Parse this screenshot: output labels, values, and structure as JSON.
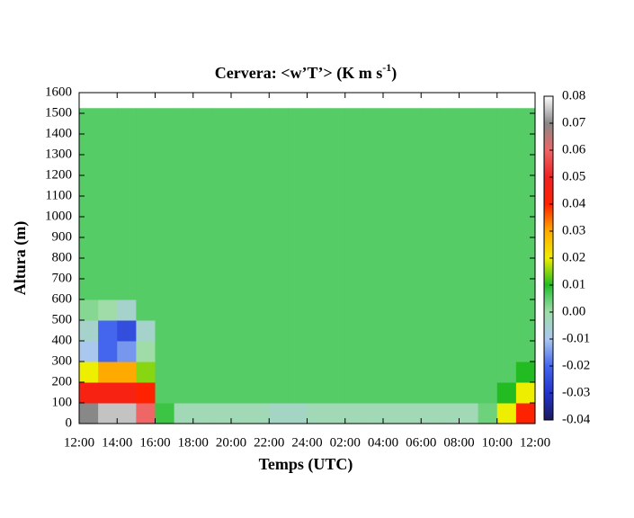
{
  "chart_data": {
    "type": "heatmap",
    "title": [
      "Cervera: <w’T’> (K m s",
      "-1",
      ")"
    ],
    "xlabel": "Temps (UTC)",
    "ylabel": "Altura (m)",
    "xlim": [
      0,
      24
    ],
    "xticks": [
      {
        "value": 0,
        "label": "12:00"
      },
      {
        "value": 2,
        "label": "14:00"
      },
      {
        "value": 4,
        "label": "16:00"
      },
      {
        "value": 6,
        "label": "18:00"
      },
      {
        "value": 8,
        "label": "20:00"
      },
      {
        "value": 10,
        "label": "22:00"
      },
      {
        "value": 12,
        "label": "24:00"
      },
      {
        "value": 14,
        "label": "02:00"
      },
      {
        "value": 16,
        "label": "04:00"
      },
      {
        "value": 18,
        "label": "06:00"
      },
      {
        "value": 20,
        "label": "08:00"
      },
      {
        "value": 22,
        "label": "10:00"
      },
      {
        "value": 24,
        "label": "12:00"
      }
    ],
    "ylim": [
      0,
      1600
    ],
    "yticks": [
      0,
      100,
      200,
      300,
      400,
      500,
      600,
      700,
      800,
      900,
      1000,
      1100,
      1200,
      1300,
      1400,
      1500,
      1600
    ],
    "xbins": [
      0,
      1,
      2,
      3,
      4,
      5,
      6,
      7,
      8,
      9,
      10,
      11,
      12,
      13,
      14,
      15,
      16,
      17,
      18,
      19,
      20,
      21,
      22,
      23,
      24
    ],
    "ybins": [
      0,
      100,
      200,
      300,
      400,
      500,
      600,
      700,
      800,
      900,
      1000,
      1100,
      1200,
      1300,
      1400,
      1500,
      1525
    ],
    "z": [
      [
        0.07,
        0.075,
        0.075,
        0.06,
        0.008,
        -0.002,
        -0.002,
        -0.002,
        -0.002,
        -0.002,
        -0.004,
        -0.004,
        -0.002,
        -0.002,
        -0.002,
        -0.002,
        -0.002,
        -0.002,
        -0.002,
        -0.002,
        -0.002,
        0.004,
        0.02,
        0.04
      ],
      [
        0.045,
        0.045,
        0.045,
        0.04,
        0.006,
        0.006,
        0.006,
        0.006,
        0.006,
        0.006,
        0.006,
        0.006,
        0.006,
        0.006,
        0.006,
        0.006,
        0.006,
        0.006,
        0.006,
        0.006,
        0.006,
        0.006,
        0.01,
        0.02
      ],
      [
        0.02,
        0.03,
        0.03,
        0.015,
        0.006,
        0.006,
        0.006,
        0.006,
        0.006,
        0.006,
        0.006,
        0.006,
        0.006,
        0.006,
        0.006,
        0.006,
        0.006,
        0.006,
        0.006,
        0.006,
        0.006,
        0.006,
        0.006,
        0.01
      ],
      [
        -0.01,
        -0.02,
        -0.015,
        0.0,
        0.006,
        0.006,
        0.006,
        0.006,
        0.006,
        0.006,
        0.006,
        0.006,
        0.006,
        0.006,
        0.006,
        0.006,
        0.006,
        0.006,
        0.006,
        0.006,
        0.006,
        0.006,
        0.006,
        0.006
      ],
      [
        -0.005,
        -0.02,
        -0.025,
        -0.005,
        0.006,
        0.006,
        0.006,
        0.006,
        0.006,
        0.006,
        0.006,
        0.006,
        0.006,
        0.006,
        0.006,
        0.006,
        0.006,
        0.006,
        0.006,
        0.006,
        0.006,
        0.006,
        0.006,
        0.006
      ],
      [
        0.002,
        0.0,
        -0.005,
        0.006,
        0.006,
        0.006,
        0.006,
        0.006,
        0.006,
        0.006,
        0.006,
        0.006,
        0.006,
        0.006,
        0.006,
        0.006,
        0.006,
        0.006,
        0.006,
        0.006,
        0.006,
        0.006,
        0.006,
        0.006
      ],
      [
        0.006,
        0.006,
        0.006,
        0.006,
        0.006,
        0.006,
        0.006,
        0.006,
        0.006,
        0.006,
        0.006,
        0.006,
        0.006,
        0.006,
        0.006,
        0.006,
        0.006,
        0.006,
        0.006,
        0.006,
        0.006,
        0.006,
        0.006,
        0.006
      ],
      [
        0.006,
        0.006,
        0.006,
        0.006,
        0.006,
        0.006,
        0.006,
        0.006,
        0.006,
        0.006,
        0.006,
        0.006,
        0.006,
        0.006,
        0.006,
        0.006,
        0.006,
        0.006,
        0.006,
        0.006,
        0.006,
        0.006,
        0.006,
        0.006
      ],
      [
        0.006,
        0.006,
        0.006,
        0.006,
        0.006,
        0.006,
        0.006,
        0.006,
        0.006,
        0.006,
        0.006,
        0.006,
        0.006,
        0.006,
        0.006,
        0.006,
        0.006,
        0.006,
        0.006,
        0.006,
        0.006,
        0.006,
        0.006,
        0.006
      ],
      [
        0.006,
        0.006,
        0.006,
        0.006,
        0.006,
        0.006,
        0.006,
        0.006,
        0.006,
        0.006,
        0.006,
        0.006,
        0.006,
        0.006,
        0.006,
        0.006,
        0.006,
        0.006,
        0.006,
        0.006,
        0.006,
        0.006,
        0.006,
        0.006
      ],
      [
        0.006,
        0.006,
        0.006,
        0.006,
        0.006,
        0.006,
        0.006,
        0.006,
        0.006,
        0.006,
        0.006,
        0.006,
        0.006,
        0.006,
        0.006,
        0.006,
        0.006,
        0.006,
        0.006,
        0.006,
        0.006,
        0.006,
        0.006,
        0.006
      ],
      [
        0.006,
        0.006,
        0.006,
        0.006,
        0.006,
        0.006,
        0.006,
        0.006,
        0.006,
        0.006,
        0.006,
        0.006,
        0.006,
        0.006,
        0.006,
        0.006,
        0.006,
        0.006,
        0.006,
        0.006,
        0.006,
        0.006,
        0.006,
        0.006
      ],
      [
        0.006,
        0.006,
        0.006,
        0.006,
        0.006,
        0.006,
        0.006,
        0.006,
        0.006,
        0.006,
        0.006,
        0.006,
        0.006,
        0.006,
        0.006,
        0.006,
        0.006,
        0.006,
        0.006,
        0.006,
        0.006,
        0.006,
        0.006,
        0.006
      ],
      [
        0.006,
        0.006,
        0.006,
        0.006,
        0.006,
        0.006,
        0.006,
        0.006,
        0.006,
        0.006,
        0.006,
        0.006,
        0.006,
        0.006,
        0.006,
        0.006,
        0.006,
        0.006,
        0.006,
        0.006,
        0.006,
        0.006,
        0.006,
        0.006
      ],
      [
        0.006,
        0.006,
        0.006,
        0.006,
        0.006,
        0.006,
        0.006,
        0.006,
        0.006,
        0.006,
        0.006,
        0.006,
        0.006,
        0.006,
        0.006,
        0.006,
        0.006,
        0.006,
        0.006,
        0.006,
        0.006,
        0.006,
        0.006,
        0.006
      ],
      [
        0.006,
        0.006,
        0.006,
        0.006,
        0.006,
        0.006,
        0.006,
        0.006,
        0.006,
        0.006,
        0.006,
        0.006,
        0.006,
        0.006,
        0.006,
        0.006,
        0.006,
        0.006,
        0.006,
        0.006,
        0.006,
        0.006,
        0.006,
        0.006
      ]
    ],
    "zlim": [
      -0.04,
      0.08
    ],
    "zticks": [
      -0.04,
      -0.03,
      -0.02,
      -0.01,
      {
        "value": 0,
        "label": "0.00"
      },
      0.01,
      0.02,
      0.03,
      0.04,
      0.05,
      0.06,
      0.07,
      0.08
    ],
    "colormap": [
      {
        "value": -0.04,
        "color": "#1a1a5e"
      },
      {
        "value": -0.03,
        "color": "#2233cc"
      },
      {
        "value": -0.02,
        "color": "#4466ee"
      },
      {
        "value": -0.01,
        "color": "#aac8ee"
      },
      {
        "value": 0,
        "color": "#9fdca8"
      },
      {
        "value": 0.006,
        "color": "#55cc66"
      },
      {
        "value": 0.01,
        "color": "#22bb22"
      },
      {
        "value": 0.02,
        "color": "#eeee00"
      },
      {
        "value": 0.03,
        "color": "#ffaa00"
      },
      {
        "value": 0.04,
        "color": "#ff2200"
      },
      {
        "value": 0.05,
        "color": "#ee2222"
      },
      {
        "value": 0.06,
        "color": "#ee6666"
      },
      {
        "value": 0.07,
        "color": "#888888"
      },
      {
        "value": 0.08,
        "color": "#ffffff"
      }
    ]
  }
}
